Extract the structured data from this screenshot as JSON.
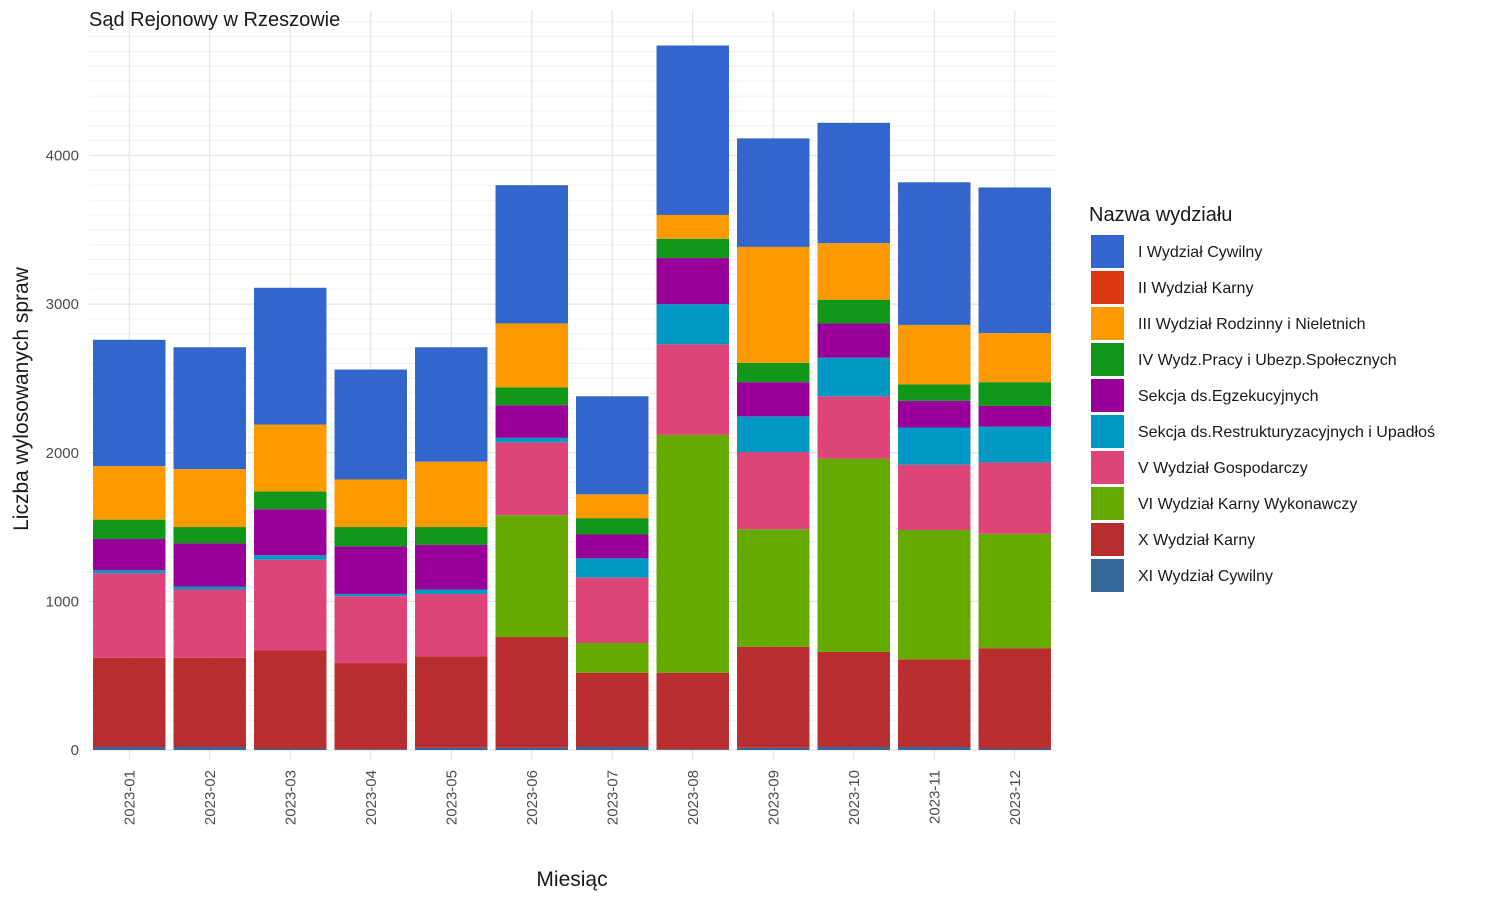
{
  "chart_data": {
    "type": "bar",
    "stacked": true,
    "title": "Sąd Rejonowy w Rzeszowie",
    "xlabel": "Miesiąc",
    "ylabel": "Liczba wylosowanych spraw",
    "ylim": [
      0,
      4950
    ],
    "yticks": [
      0,
      1000,
      2000,
      3000,
      4000
    ],
    "grid": true,
    "legend_title": "Nazwa wydziału",
    "legend_position": "right",
    "categories": [
      "2023-01",
      "2023-02",
      "2023-03",
      "2023-04",
      "2023-05",
      "2023-06",
      "2023-07",
      "2023-08",
      "2023-09",
      "2023-10",
      "2023-11",
      "2023-12"
    ],
    "series": [
      {
        "name": "XI Wydział Cywilny",
        "color": "#336699",
        "values": [
          20,
          20,
          10,
          5,
          15,
          15,
          20,
          5,
          15,
          20,
          20,
          10
        ]
      },
      {
        "name": "X Wydział Karny",
        "color": "#B82E2E",
        "values": [
          600,
          600,
          660,
          580,
          615,
          745,
          500,
          515,
          680,
          640,
          590,
          675
        ]
      },
      {
        "name": "VI Wydział Karny Wykonawczy",
        "color": "#66AA00",
        "values": [
          0,
          0,
          0,
          0,
          0,
          820,
          200,
          1600,
          790,
          1300,
          870,
          770
        ]
      },
      {
        "name": "V Wydział Gospodarczy",
        "color": "#DD4477",
        "values": [
          570,
          460,
          610,
          450,
          420,
          490,
          440,
          610,
          520,
          420,
          440,
          480
        ]
      },
      {
        "name": "Sekcja ds.Restrukturyzacyjnych i Upadłoś",
        "color": "#0099C6",
        "values": [
          20,
          20,
          30,
          15,
          30,
          30,
          130,
          270,
          240,
          260,
          250,
          240
        ]
      },
      {
        "name": "Sekcja ds.Egzekucyjnych",
        "color": "#990099",
        "values": [
          210,
          290,
          310,
          320,
          300,
          220,
          160,
          310,
          230,
          230,
          180,
          140
        ]
      },
      {
        "name": "IV Wydz.Pracy i Ubezp.Społecznych",
        "color": "#109618",
        "values": [
          130,
          110,
          120,
          130,
          120,
          120,
          110,
          130,
          130,
          160,
          110,
          160
        ]
      },
      {
        "name": "III Wydział Rodzinny i Nieletnich",
        "color": "#FF9900",
        "values": [
          360,
          390,
          450,
          320,
          440,
          430,
          160,
          160,
          780,
          380,
          400,
          330
        ]
      },
      {
        "name": "II Wydział Karny",
        "color": "#DC3912",
        "values": [
          0,
          0,
          0,
          0,
          0,
          0,
          0,
          0,
          0,
          0,
          0,
          0
        ]
      },
      {
        "name": "I Wydział Cywilny",
        "color": "#3366CC",
        "values": [
          850,
          820,
          920,
          740,
          770,
          930,
          660,
          1140,
          730,
          810,
          960,
          980
        ]
      }
    ],
    "legend_order": [
      "I Wydział Cywilny",
      "II Wydział Karny",
      "III Wydział Rodzinny i Nieletnich",
      "IV Wydz.Pracy i Ubezp.Społecznych",
      "Sekcja ds.Egzekucyjnych",
      "Sekcja ds.Restrukturyzacyjnych i Upadłoś",
      "V Wydział Gospodarczy",
      "VI Wydział Karny Wykonawczy",
      "X Wydział Karny",
      "XI Wydział Cywilny"
    ]
  }
}
